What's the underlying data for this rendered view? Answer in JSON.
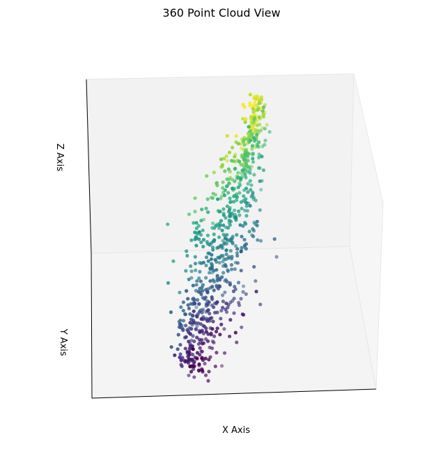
{
  "chart_data": {
    "type": "scatter",
    "projection": "3d",
    "title": "360 Point Cloud View",
    "xlabel": "X Axis",
    "ylabel": "Y Axis",
    "zlabel": "Z Axis",
    "colormap": "viridis",
    "ticks_visible": false,
    "pane_color": "#f2f2f2",
    "point_count": 800,
    "points_note_values_are_projected_approximations": true
  }
}
